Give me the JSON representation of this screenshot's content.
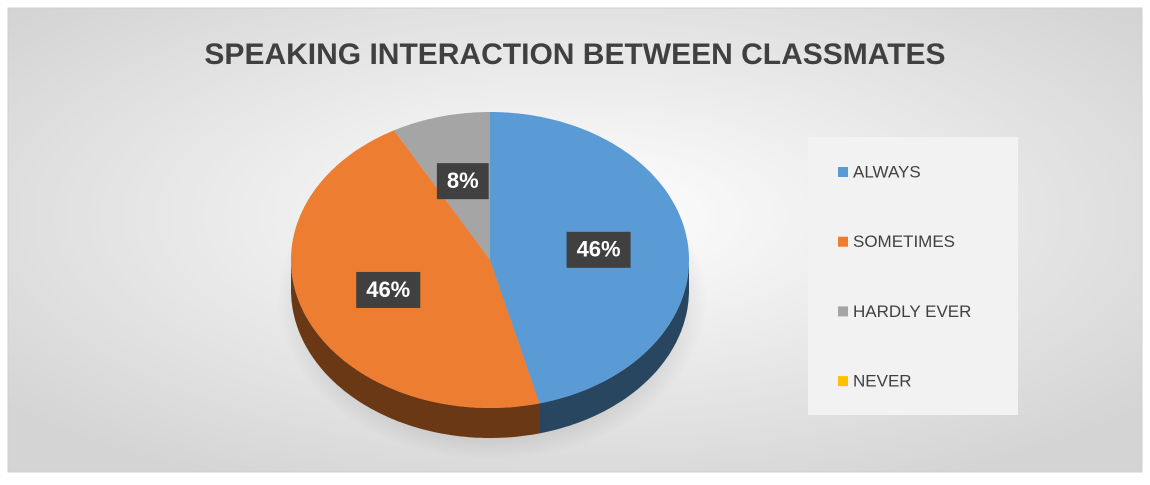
{
  "chart_data": {
    "type": "pie",
    "title": "SPEAKING INTERACTION BETWEEN CLASSMATES",
    "categories": [
      "ALWAYS",
      "SOMETIMES",
      "HARDLY EVER",
      "NEVER"
    ],
    "values": [
      46,
      46,
      8,
      0
    ],
    "value_labels": [
      "46%",
      "46%",
      "8%",
      null
    ],
    "colors": [
      "#5b9bd5",
      "#ed7d31",
      "#a5a5a5",
      "#ffc000"
    ],
    "legend": "right"
  }
}
